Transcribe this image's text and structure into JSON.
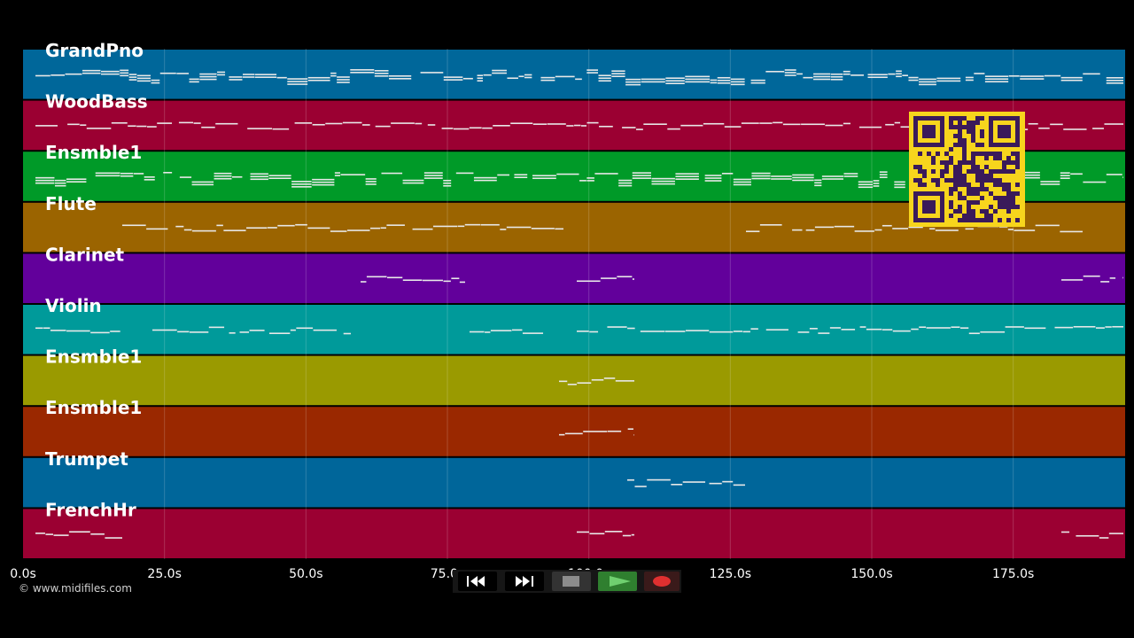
{
  "copyright": "© www.midifiles.com",
  "tracks": [
    {
      "name": "GrandPno",
      "color": "#00679a"
    },
    {
      "name": "WoodBass",
      "color": "#9b0032"
    },
    {
      "name": "Ensmble1",
      "color": "#009a28"
    },
    {
      "name": "Flute",
      "color": "#9b6400"
    },
    {
      "name": "Clarinet",
      "color": "#62009b"
    },
    {
      "name": "Violin",
      "color": "#009a9a"
    },
    {
      "name": "Ensmble1",
      "color": "#9a9a00"
    },
    {
      "name": "Ensmble1",
      "color": "#9a2800"
    },
    {
      "name": "Trumpet",
      "color": "#00669a"
    },
    {
      "name": "FrenchHr",
      "color": "#9b0032"
    }
  ],
  "timeline": {
    "ticks": [
      "0.0s",
      "25.0s",
      "50.0s",
      "75.0s",
      "100.0s",
      "125.0s",
      "150.0s",
      "175.0s"
    ],
    "max_seconds": 195
  },
  "transport": {
    "buttons": [
      {
        "name": "rewind-button",
        "icon": "rewind-icon"
      },
      {
        "name": "fast-forward-button",
        "icon": "fast-forward-icon"
      },
      {
        "name": "stop-button",
        "icon": "stop-icon"
      },
      {
        "name": "play-button",
        "icon": "play-icon",
        "active": true
      },
      {
        "name": "record-button",
        "icon": "record-icon"
      }
    ]
  },
  "qr_code": {
    "icon": "qr-code-icon",
    "color": "#f7d51d"
  }
}
